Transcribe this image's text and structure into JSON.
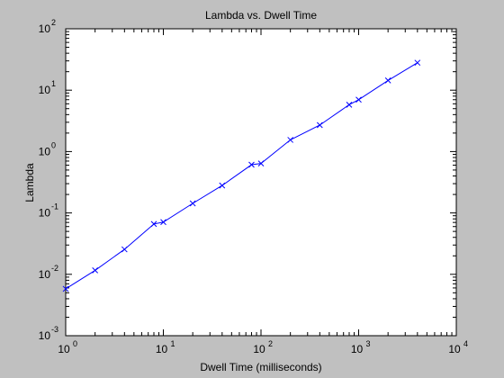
{
  "chart_data": {
    "type": "line",
    "title": "Lambda vs. Dwell Time",
    "xlabel": "Dwell Time (milliseconds)",
    "ylabel": "Lambda",
    "xscale": "log",
    "yscale": "log",
    "xlim": [
      1,
      10000
    ],
    "ylim": [
      0.001,
      100
    ],
    "x_ticks": [
      {
        "base": "10",
        "exp": "0"
      },
      {
        "base": "10",
        "exp": "1"
      },
      {
        "base": "10",
        "exp": "2"
      },
      {
        "base": "10",
        "exp": "3"
      },
      {
        "base": "10",
        "exp": "4"
      }
    ],
    "y_ticks": [
      {
        "base": "10",
        "exp": "-3"
      },
      {
        "base": "10",
        "exp": "-2"
      },
      {
        "base": "10",
        "exp": "-1"
      },
      {
        "base": "10",
        "exp": "0"
      },
      {
        "base": "10",
        "exp": "1"
      },
      {
        "base": "10",
        "exp": "2"
      }
    ],
    "grid": false,
    "marker": "x",
    "line_color": "#0000ff",
    "series": [
      {
        "x": [
          1,
          2,
          4,
          8,
          10,
          20,
          40,
          80,
          100,
          200,
          400,
          800,
          1000,
          2000,
          4000
        ],
        "y": [
          0.0058,
          0.0116,
          0.0255,
          0.066,
          0.071,
          0.143,
          0.28,
          0.61,
          0.64,
          1.55,
          2.7,
          5.8,
          7.0,
          14.4,
          28.0
        ]
      }
    ]
  }
}
